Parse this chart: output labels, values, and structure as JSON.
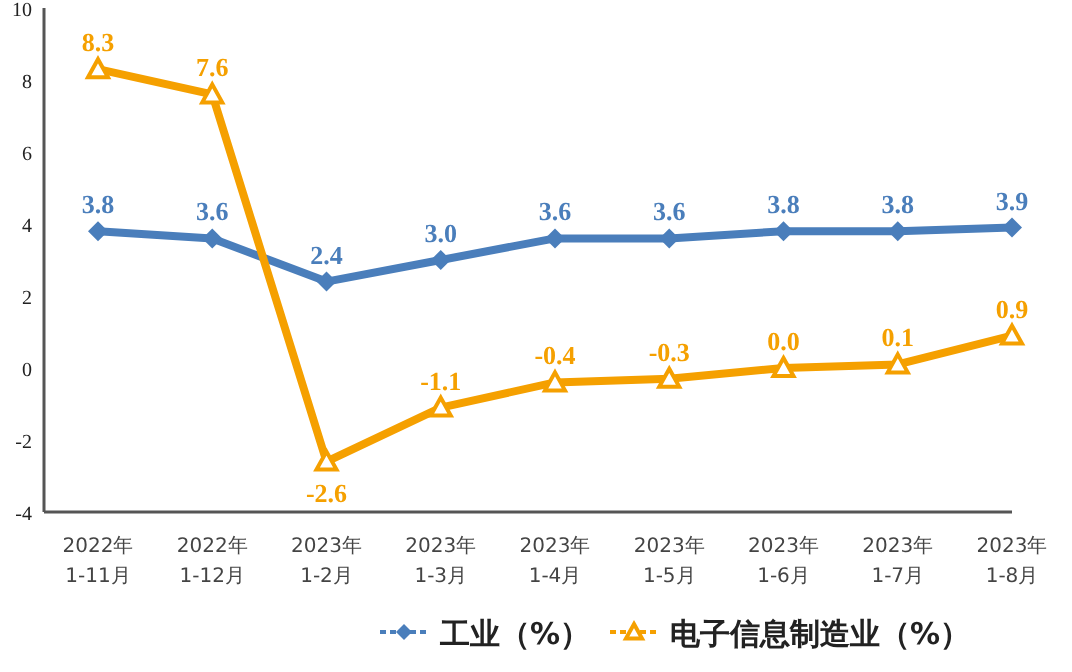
{
  "chart_data": {
    "type": "line",
    "categories": [
      "2022年\n1-11月",
      "2022年\n1-12月",
      "2023年\n1-2月",
      "2023年\n1-3月",
      "2023年\n1-4月",
      "2023年\n1-5月",
      "2023年\n1-6月",
      "2023年\n1-7月",
      "2023年\n1-8月"
    ],
    "ylim": [
      -4,
      10
    ],
    "yticks": [
      -4,
      -2,
      0,
      2,
      4,
      6,
      8,
      10
    ],
    "grid": false,
    "legend": "bottom",
    "series": [
      {
        "name": "工业（%）",
        "color": "#4a7ebb",
        "marker": "diamond",
        "values": [
          3.8,
          3.6,
          2.4,
          3.0,
          3.6,
          3.6,
          3.8,
          3.8,
          3.9
        ],
        "value_labels": [
          "3.8",
          "3.6",
          "2.4",
          "3.0",
          "3.6",
          "3.6",
          "3.8",
          "3.8",
          "3.9"
        ]
      },
      {
        "name": "电子信息制造业（%）",
        "color": "#f5a000",
        "marker": "triangle",
        "values": [
          8.3,
          7.6,
          -2.6,
          -1.1,
          -0.4,
          -0.3,
          0.0,
          0.1,
          0.9
        ],
        "value_labels": [
          "8.3",
          "7.6",
          "-2.6",
          "-1.1",
          "-0.4",
          "-0.3",
          "0.0",
          "0.1",
          "0.9"
        ]
      }
    ]
  }
}
